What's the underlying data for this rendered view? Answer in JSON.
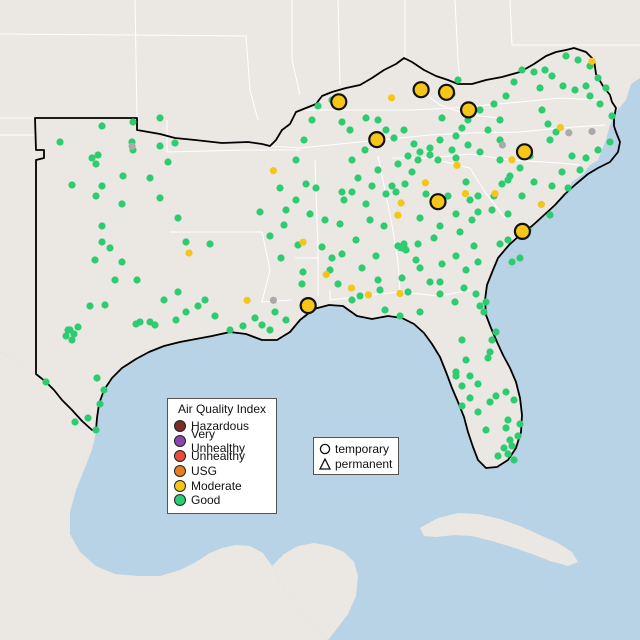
{
  "colors": {
    "ocean": "#b9d3e6",
    "land": "#ebe7e3",
    "state_border": "#ffffff",
    "region_outline": "#000000",
    "good": "#2ecc71",
    "moderate": "#f5c518",
    "usg": "#e67e22",
    "unhealthy": "#e74c3c",
    "very_unhealthy": "#8e44ad",
    "hazardous": "#7b2d26",
    "no_data": "#aaaaaa"
  },
  "aqi_legend": {
    "title": "Air Quality Index",
    "items": [
      {
        "label": "Hazardous",
        "color": "#7b2d26"
      },
      {
        "label": "Very Unhealthy",
        "color": "#8e44ad"
      },
      {
        "label": "Unhealthy",
        "color": "#e74c3c"
      },
      {
        "label": "USG",
        "color": "#e67e22"
      },
      {
        "label": "Moderate",
        "color": "#f5c518"
      },
      {
        "label": "Good",
        "color": "#2ecc71"
      }
    ]
  },
  "type_legend": {
    "items": [
      {
        "label": "temporary",
        "shape": "circle"
      },
      {
        "label": "permanent",
        "shape": "triangle"
      }
    ]
  },
  "monitors": {
    "large_temporary_moderate": [
      {
        "lon": -84.7,
        "lat": 38.05
      },
      {
        "lon": -83.5,
        "lat": 37.95
      },
      {
        "lon": -82.45,
        "lat": 37.3
      },
      {
        "lon": -86.8,
        "lat": 36.2
      },
      {
        "lon": -88.6,
        "lat": 37.6
      },
      {
        "lon": -79.8,
        "lat": 35.75
      },
      {
        "lon": -83.9,
        "lat": 33.9
      },
      {
        "lon": -79.9,
        "lat": 32.8
      },
      {
        "lon": -90.05,
        "lat": 30.05
      }
    ],
    "small_moderate": [
      {
        "lon": -86.1,
        "lat": 37.75
      },
      {
        "lon": -91.7,
        "lat": 35.05
      },
      {
        "lon": -83.0,
        "lat": 35.25
      },
      {
        "lon": -80.4,
        "lat": 35.45
      },
      {
        "lon": -81.2,
        "lat": 34.2
      },
      {
        "lon": -82.6,
        "lat": 34.2
      },
      {
        "lon": -85.65,
        "lat": 33.85
      },
      {
        "lon": -84.5,
        "lat": 34.6
      },
      {
        "lon": -90.3,
        "lat": 32.4
      },
      {
        "lon": -89.2,
        "lat": 31.2
      },
      {
        "lon": -88.0,
        "lat": 30.7
      },
      {
        "lon": -87.2,
        "lat": 30.45
      },
      {
        "lon": -85.7,
        "lat": 30.5
      },
      {
        "lon": -95.7,
        "lat": 32.0
      },
      {
        "lon": -92.95,
        "lat": 30.25
      },
      {
        "lon": -79.0,
        "lat": 33.8
      },
      {
        "lon": -76.6,
        "lat": 39.1
      },
      {
        "lon": -78.1,
        "lat": 36.65
      },
      {
        "lon": -85.8,
        "lat": 33.4
      }
    ],
    "small_no_data": [
      {
        "lon": -98.4,
        "lat": 35.95
      },
      {
        "lon": -91.7,
        "lat": 30.25
      },
      {
        "lon": -80.85,
        "lat": 36.0
      },
      {
        "lon": -77.7,
        "lat": 36.45
      },
      {
        "lon": -76.6,
        "lat": 36.5
      }
    ]
  }
}
